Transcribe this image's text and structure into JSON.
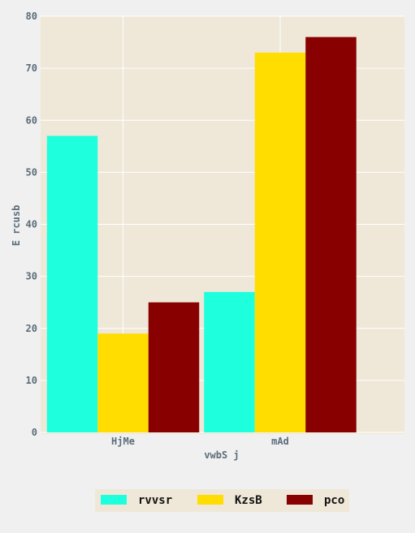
{
  "chart_data": {
    "type": "bar",
    "categories": [
      "HjMe",
      "mAd"
    ],
    "series": [
      {
        "name": "rvvsr",
        "values": [
          57,
          27
        ],
        "color": "#1effdd"
      },
      {
        "name": "KzsB",
        "values": [
          19,
          73
        ],
        "color": "#ffdd00"
      },
      {
        "name": "pco",
        "values": [
          25,
          76
        ],
        "color": "#880000"
      }
    ],
    "xlabel": "vwbS j",
    "ylabel": "E rcusb",
    "ylim": [
      0,
      80
    ],
    "yticks": [
      0,
      10,
      20,
      30,
      40,
      50,
      60,
      70,
      80
    ],
    "grid": true,
    "legend_position": "bottom",
    "colors": {
      "plot_background": "#efe8d8",
      "page_background": "#f0f0f0",
      "grid": "#ffffff",
      "text": "#5b6d7a"
    }
  }
}
